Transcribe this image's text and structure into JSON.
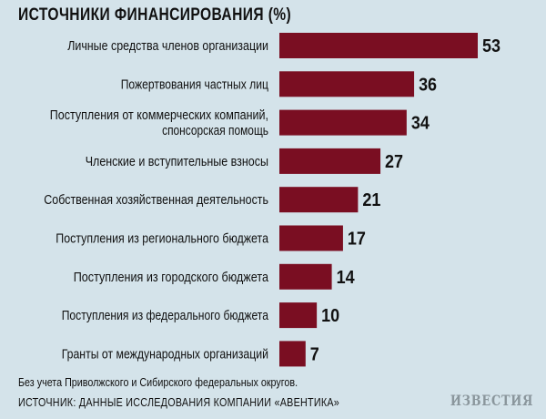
{
  "title": "ИСТОЧНИКИ ФИНАНСИРОВАНИЯ (%)",
  "footnote": "Без учета Приволжского и Сибирского федеральных округов.",
  "source": "ИСТОЧНИК: ДАННЫЕ ИССЛЕДОВАНИЯ КОМПАНИИ «АВЕНТИКА»",
  "logo": "ИЗВЕСТИЯ",
  "colors": {
    "background": "#d4e3ea",
    "bar": "#7a0e22"
  },
  "chart_data": {
    "type": "bar",
    "orientation": "horizontal",
    "title": "ИСТОЧНИКИ ФИНАНСИРОВАНИЯ (%)",
    "categories": [
      [
        "Личные средства членов организации"
      ],
      [
        "Пожертвования частных лиц"
      ],
      [
        "Поступления от коммерческих компаний,",
        "спонсорская помощь"
      ],
      [
        "Членские и вступительные взносы"
      ],
      [
        "Собственная хозяйственная деятельность"
      ],
      [
        "Поступления из регионального бюджета"
      ],
      [
        "Поступления из городского бюджета"
      ],
      [
        "Поступления из федерального бюджета"
      ],
      [
        "Гранты от международных организаций"
      ]
    ],
    "values": [
      53,
      36,
      34,
      27,
      21,
      17,
      14,
      10,
      7
    ],
    "xlim": [
      0,
      53
    ],
    "grid": false,
    "legend": "none"
  }
}
